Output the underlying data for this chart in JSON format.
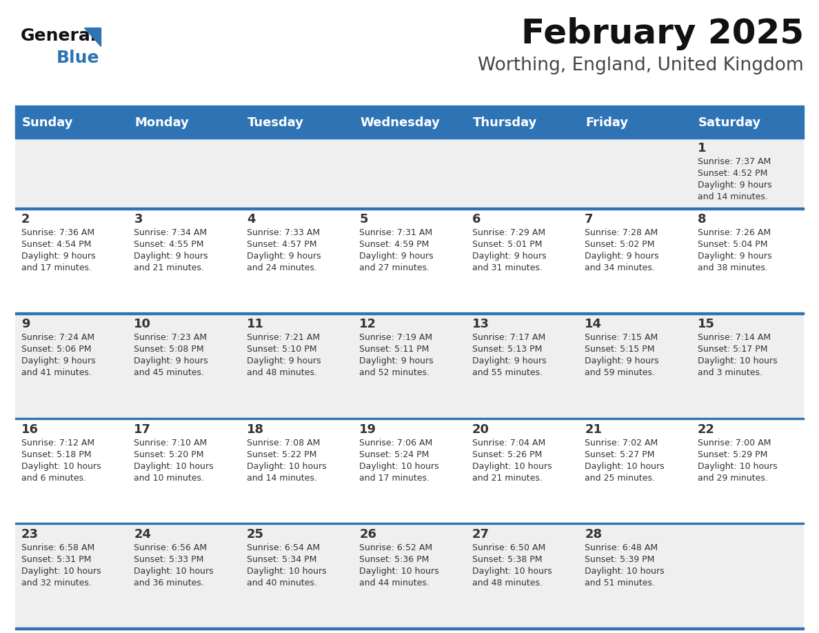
{
  "title": "February 2025",
  "subtitle": "Worthing, England, United Kingdom",
  "header_bg": "#2E74B5",
  "header_text_color": "#FFFFFF",
  "days_of_week": [
    "Sunday",
    "Monday",
    "Tuesday",
    "Wednesday",
    "Thursday",
    "Friday",
    "Saturday"
  ],
  "separator_color": "#2E74B5",
  "cell_bg_light": "#EFEFEF",
  "cell_bg_white": "#FFFFFF",
  "day_number_color": "#333333",
  "info_text_color": "#333333",
  "title_color": "#111111",
  "subtitle_color": "#444444",
  "logo_general_color": "#111111",
  "logo_blue_color": "#2E74B5",
  "calendar_data": [
    [
      null,
      null,
      null,
      null,
      null,
      null,
      {
        "day": 1,
        "sunrise": "7:37 AM",
        "sunset": "4:52 PM",
        "daylight": "9 hours and 14 minutes."
      }
    ],
    [
      {
        "day": 2,
        "sunrise": "7:36 AM",
        "sunset": "4:54 PM",
        "daylight": "9 hours and 17 minutes."
      },
      {
        "day": 3,
        "sunrise": "7:34 AM",
        "sunset": "4:55 PM",
        "daylight": "9 hours and 21 minutes."
      },
      {
        "day": 4,
        "sunrise": "7:33 AM",
        "sunset": "4:57 PM",
        "daylight": "9 hours and 24 minutes."
      },
      {
        "day": 5,
        "sunrise": "7:31 AM",
        "sunset": "4:59 PM",
        "daylight": "9 hours and 27 minutes."
      },
      {
        "day": 6,
        "sunrise": "7:29 AM",
        "sunset": "5:01 PM",
        "daylight": "9 hours and 31 minutes."
      },
      {
        "day": 7,
        "sunrise": "7:28 AM",
        "sunset": "5:02 PM",
        "daylight": "9 hours and 34 minutes."
      },
      {
        "day": 8,
        "sunrise": "7:26 AM",
        "sunset": "5:04 PM",
        "daylight": "9 hours and 38 minutes."
      }
    ],
    [
      {
        "day": 9,
        "sunrise": "7:24 AM",
        "sunset": "5:06 PM",
        "daylight": "9 hours and 41 minutes."
      },
      {
        "day": 10,
        "sunrise": "7:23 AM",
        "sunset": "5:08 PM",
        "daylight": "9 hours and 45 minutes."
      },
      {
        "day": 11,
        "sunrise": "7:21 AM",
        "sunset": "5:10 PM",
        "daylight": "9 hours and 48 minutes."
      },
      {
        "day": 12,
        "sunrise": "7:19 AM",
        "sunset": "5:11 PM",
        "daylight": "9 hours and 52 minutes."
      },
      {
        "day": 13,
        "sunrise": "7:17 AM",
        "sunset": "5:13 PM",
        "daylight": "9 hours and 55 minutes."
      },
      {
        "day": 14,
        "sunrise": "7:15 AM",
        "sunset": "5:15 PM",
        "daylight": "9 hours and 59 minutes."
      },
      {
        "day": 15,
        "sunrise": "7:14 AM",
        "sunset": "5:17 PM",
        "daylight": "10 hours and 3 minutes."
      }
    ],
    [
      {
        "day": 16,
        "sunrise": "7:12 AM",
        "sunset": "5:18 PM",
        "daylight": "10 hours and 6 minutes."
      },
      {
        "day": 17,
        "sunrise": "7:10 AM",
        "sunset": "5:20 PM",
        "daylight": "10 hours and 10 minutes."
      },
      {
        "day": 18,
        "sunrise": "7:08 AM",
        "sunset": "5:22 PM",
        "daylight": "10 hours and 14 minutes."
      },
      {
        "day": 19,
        "sunrise": "7:06 AM",
        "sunset": "5:24 PM",
        "daylight": "10 hours and 17 minutes."
      },
      {
        "day": 20,
        "sunrise": "7:04 AM",
        "sunset": "5:26 PM",
        "daylight": "10 hours and 21 minutes."
      },
      {
        "day": 21,
        "sunrise": "7:02 AM",
        "sunset": "5:27 PM",
        "daylight": "10 hours and 25 minutes."
      },
      {
        "day": 22,
        "sunrise": "7:00 AM",
        "sunset": "5:29 PM",
        "daylight": "10 hours and 29 minutes."
      }
    ],
    [
      {
        "day": 23,
        "sunrise": "6:58 AM",
        "sunset": "5:31 PM",
        "daylight": "10 hours and 32 minutes."
      },
      {
        "day": 24,
        "sunrise": "6:56 AM",
        "sunset": "5:33 PM",
        "daylight": "10 hours and 36 minutes."
      },
      {
        "day": 25,
        "sunrise": "6:54 AM",
        "sunset": "5:34 PM",
        "daylight": "10 hours and 40 minutes."
      },
      {
        "day": 26,
        "sunrise": "6:52 AM",
        "sunset": "5:36 PM",
        "daylight": "10 hours and 44 minutes."
      },
      {
        "day": 27,
        "sunrise": "6:50 AM",
        "sunset": "5:38 PM",
        "daylight": "10 hours and 48 minutes."
      },
      {
        "day": 28,
        "sunrise": "6:48 AM",
        "sunset": "5:39 PM",
        "daylight": "10 hours and 51 minutes."
      },
      null
    ]
  ]
}
